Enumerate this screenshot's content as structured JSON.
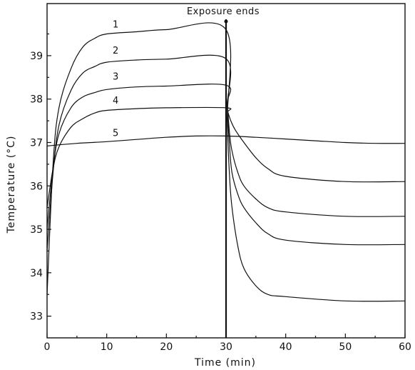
{
  "chart_data": {
    "type": "line",
    "xlabel": "Time (min)",
    "ylabel": "Temperature (°C)",
    "xlim": [
      0,
      60
    ],
    "ylim": [
      32.5,
      40.2
    ],
    "xticks": [
      "0",
      "10",
      "20",
      "30",
      "40",
      "50",
      "60"
    ],
    "yticks": [
      "33",
      "34",
      "35",
      "36",
      "37",
      "38",
      "39"
    ],
    "grid": false,
    "annotation": {
      "text": "Exposure ends",
      "x": 30
    },
    "series": [
      {
        "name": "1",
        "x": [
          0,
          1,
          2,
          4,
          6,
          8,
          10,
          15,
          20,
          30,
          30.2,
          30.6,
          31,
          32,
          33,
          35,
          37,
          40,
          50,
          60
        ],
        "y": [
          33.5,
          36.5,
          37.8,
          38.7,
          39.2,
          39.4,
          39.5,
          39.55,
          39.6,
          39.6,
          37.5,
          36.2,
          35.5,
          34.6,
          34.1,
          33.7,
          33.5,
          33.45,
          33.35,
          33.35
        ]
      },
      {
        "name": "2",
        "x": [
          0,
          1,
          2,
          4,
          6,
          8,
          10,
          15,
          20,
          30,
          30.2,
          30.6,
          31,
          32,
          33,
          35,
          37,
          40,
          50,
          60
        ],
        "y": [
          34.5,
          36.3,
          37.4,
          38.2,
          38.6,
          38.75,
          38.85,
          38.9,
          38.92,
          38.93,
          37.8,
          36.9,
          36.3,
          35.8,
          35.5,
          35.15,
          34.9,
          34.75,
          34.65,
          34.65
        ]
      },
      {
        "name": "3",
        "x": [
          0,
          1,
          2,
          4,
          6,
          8,
          10,
          15,
          20,
          30,
          30.2,
          30.6,
          31,
          32,
          33,
          35,
          37,
          40,
          50,
          60
        ],
        "y": [
          35.0,
          36.4,
          37.2,
          37.8,
          38.05,
          38.15,
          38.22,
          38.28,
          38.3,
          38.32,
          37.9,
          37.2,
          36.8,
          36.3,
          36.0,
          35.7,
          35.5,
          35.4,
          35.3,
          35.3
        ]
      },
      {
        "name": "4",
        "x": [
          0,
          1,
          2,
          4,
          6,
          8,
          10,
          15,
          20,
          30,
          30.3,
          30.8,
          31.5,
          33,
          35,
          37,
          40,
          50,
          60
        ],
        "y": [
          35.5,
          36.4,
          36.9,
          37.35,
          37.55,
          37.68,
          37.74,
          37.78,
          37.8,
          37.8,
          37.7,
          37.5,
          37.3,
          37.0,
          36.65,
          36.4,
          36.22,
          36.1,
          36.1
        ]
      },
      {
        "name": "5",
        "x": [
          0,
          5,
          10,
          15,
          20,
          25,
          30,
          35,
          40,
          45,
          50,
          55,
          60
        ],
        "y": [
          36.92,
          36.98,
          37.02,
          37.07,
          37.12,
          37.15,
          37.15,
          37.12,
          37.08,
          37.04,
          37.0,
          36.98,
          36.98
        ]
      }
    ],
    "label_positions": [
      {
        "name": "1",
        "x": 11,
        "y": 39.65
      },
      {
        "name": "2",
        "x": 11,
        "y": 39.05
      },
      {
        "name": "3",
        "x": 11,
        "y": 38.45
      },
      {
        "name": "4",
        "x": 11,
        "y": 37.9
      },
      {
        "name": "5",
        "x": 11,
        "y": 37.15
      }
    ]
  }
}
